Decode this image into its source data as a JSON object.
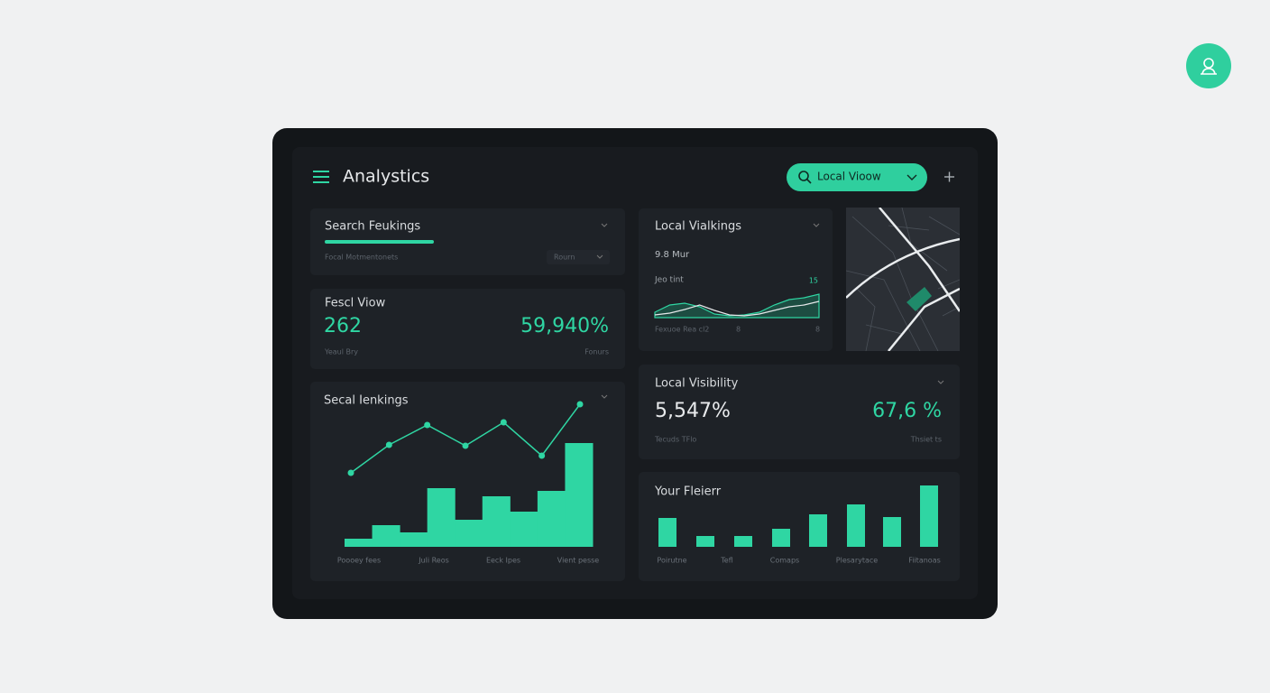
{
  "header": {
    "title": "Analystics",
    "search": "Local Vioow"
  },
  "search_rankings": {
    "title": "Search Feukings",
    "footer_left": "Focal Motmentonets",
    "footer_right": "Rourn"
  },
  "focal_view": {
    "title": "Fescl Viow",
    "value_left": "262",
    "value_right": "59,940%",
    "caption_left": "Yeaul Bry",
    "caption_right": "Fonurs"
  },
  "local_rankings": {
    "title": "Secal Ienkings",
    "bars": [
      9,
      24,
      16,
      65,
      30,
      56,
      39,
      62,
      115
    ],
    "line": [
      82,
      113,
      135,
      112,
      138,
      101,
      158
    ],
    "labels": [
      "Poooey fees",
      "Juli Reos",
      "Eeck Ipes",
      "Vient pesse"
    ]
  },
  "local_vialkings": {
    "title": "Local Vialkings",
    "metric": "9.8 Mur",
    "sub": "Jeo tint",
    "badge": "15",
    "footer": [
      "Fexuoe Rea cl2",
      "8",
      "8"
    ],
    "series": [
      [
        6,
        14,
        16,
        12,
        4,
        2,
        3,
        6,
        14,
        20,
        22,
        26
      ],
      [
        3,
        5,
        9,
        14,
        8,
        3,
        2,
        4,
        8,
        12,
        14,
        18
      ]
    ]
  },
  "local_visibility": {
    "title": "Local Visibility",
    "value_left": "5,547%",
    "value_right": "67,6 %",
    "caption_left": "Tecuds TFlo",
    "caption_right": "Thsiet ts"
  },
  "your_fleierr": {
    "title": "Your Fleierr",
    "bars": [
      32,
      12,
      12,
      20,
      36,
      47,
      33,
      68
    ],
    "labels": [
      "Poirutne",
      "Tefl",
      "Comaps",
      "Plesarytace",
      "Fiitanoas"
    ]
  }
}
